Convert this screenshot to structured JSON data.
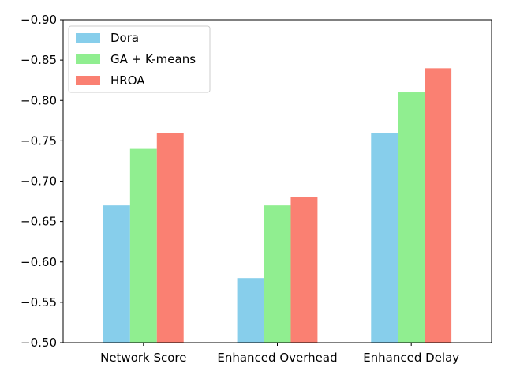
{
  "chart_data": {
    "type": "bar",
    "title": "",
    "xlabel": "",
    "ylabel": "",
    "categories": [
      "Network Score",
      "Enhanced Overhead",
      "Enhanced Delay"
    ],
    "series": [
      {
        "name": "Dora",
        "values": [
          -0.67,
          -0.58,
          -0.76
        ],
        "color": "#87ceeb"
      },
      {
        "name": "GA + K-means",
        "values": [
          -0.74,
          -0.67,
          -0.81
        ],
        "color": "#90ee90"
      },
      {
        "name": "HROA",
        "values": [
          -0.76,
          -0.68,
          -0.84
        ],
        "color": "#fa8072"
      }
    ],
    "ylim": [
      -0.5,
      -0.9
    ],
    "yticks": [
      -0.5,
      -0.55,
      -0.6,
      -0.65,
      -0.7,
      -0.75,
      -0.8,
      -0.85,
      -0.9
    ],
    "ytick_labels": [
      "−0.50",
      "−0.55",
      "−0.60",
      "−0.65",
      "−0.70",
      "−0.75",
      "−0.80",
      "−0.85",
      "−0.90"
    ],
    "grid": false,
    "legend": "top-left"
  }
}
